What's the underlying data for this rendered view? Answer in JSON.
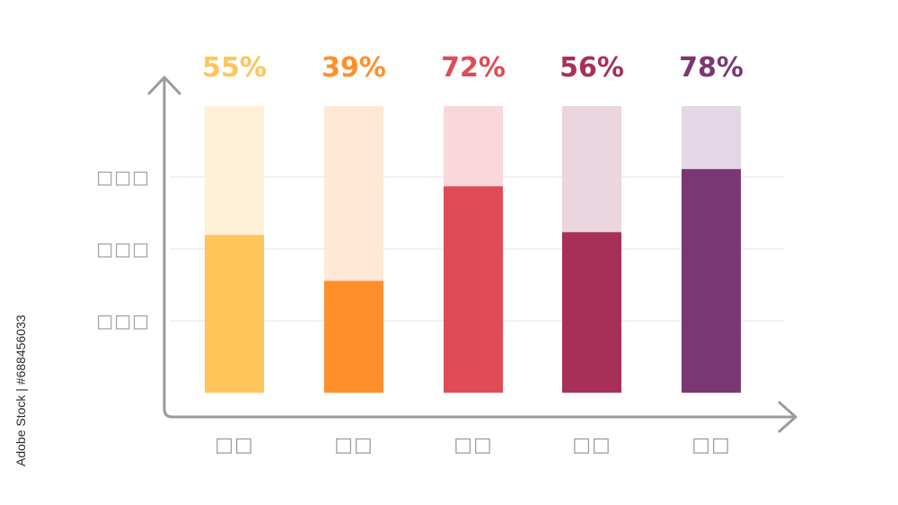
{
  "chart_data": {
    "type": "bar",
    "categories": [
      "□□",
      "□□",
      "□□",
      "□□",
      "□□"
    ],
    "series": [
      {
        "values": [
          55,
          39,
          72,
          56,
          78
        ]
      }
    ],
    "data_labels": [
      "55%",
      "39%",
      "72%",
      "56%",
      "78%"
    ],
    "y_tick_labels": [
      "□□□",
      "□□□",
      "□□□"
    ],
    "ylim": [
      0,
      100
    ],
    "grid": true,
    "legend": "none",
    "colors": {
      "fill": [
        "#FDC55A",
        "#FF8F2A",
        "#E14B57",
        "#A73058",
        "#7B3774"
      ],
      "track": [
        "#FEF1D8",
        "#FFE8D5",
        "#F9D8DC",
        "#EBD5DE",
        "#E5D6E5"
      ],
      "axis": "#9b9b9b",
      "grid": "#e3e3e3"
    }
  },
  "credit": "Adobe Stock | #688456033"
}
